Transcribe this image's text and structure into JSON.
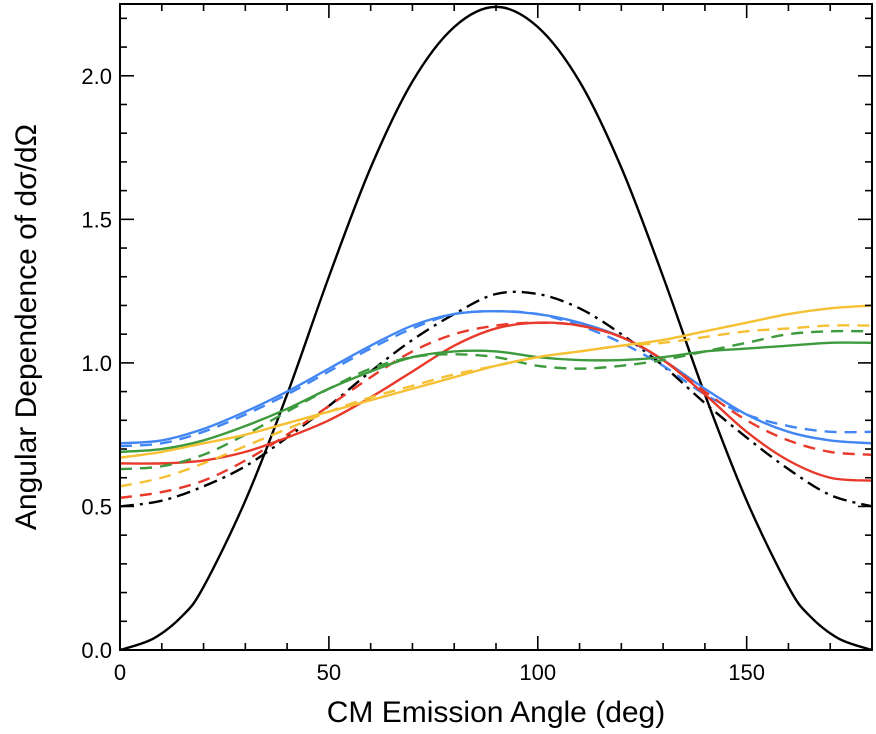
{
  "chart_data": {
    "type": "line",
    "title": "",
    "xlabel": "CM Emission Angle (deg)",
    "ylabel": "Angular Dependence of dσ/dΩ",
    "xlim": [
      0,
      180
    ],
    "ylim": [
      0,
      2.25
    ],
    "xticks": [
      0,
      50,
      100,
      150
    ],
    "yticks": [
      0.0,
      0.5,
      1.0,
      1.5,
      2.0
    ],
    "xtick_labels": [
      "0",
      "50",
      "100",
      "150"
    ],
    "ytick_labels": [
      "0.0",
      "0.5",
      "1.0",
      "1.5",
      "2.0"
    ],
    "grid": false,
    "legend": "none",
    "series": [
      {
        "name": "black-solid",
        "color": "#000000",
        "style": "solid",
        "x": [
          0,
          8,
          15,
          20,
          30,
          40,
          50,
          60,
          70,
          80,
          90,
          100,
          110,
          120,
          130,
          140,
          150,
          160,
          165,
          172,
          180
        ],
        "y": [
          0.0,
          0.04,
          0.12,
          0.22,
          0.52,
          0.89,
          1.3,
          1.68,
          1.98,
          2.17,
          2.24,
          2.17,
          1.98,
          1.68,
          1.3,
          0.89,
          0.52,
          0.22,
          0.12,
          0.04,
          0.0
        ]
      },
      {
        "name": "black-dashdot",
        "color": "#000000",
        "style": "dashdot",
        "x": [
          0,
          10,
          20,
          30,
          40,
          50,
          60,
          70,
          80,
          90,
          100,
          110,
          120,
          130,
          140,
          150,
          160,
          170,
          180
        ],
        "y": [
          0.5,
          0.52,
          0.57,
          0.64,
          0.74,
          0.85,
          0.97,
          1.08,
          1.17,
          1.24,
          1.24,
          1.19,
          1.1,
          0.99,
          0.86,
          0.74,
          0.63,
          0.54,
          0.5
        ]
      },
      {
        "name": "blue-solid",
        "color": "#4286f4",
        "style": "solid",
        "x": [
          0,
          10,
          20,
          30,
          40,
          50,
          60,
          70,
          80,
          90,
          100,
          110,
          120,
          130,
          140,
          150,
          160,
          170,
          180
        ],
        "y": [
          0.72,
          0.73,
          0.77,
          0.83,
          0.9,
          0.98,
          1.06,
          1.13,
          1.17,
          1.18,
          1.17,
          1.14,
          1.09,
          1.01,
          0.91,
          0.82,
          0.76,
          0.73,
          0.72
        ]
      },
      {
        "name": "blue-dashed",
        "color": "#4286f4",
        "style": "dashed",
        "x": [
          0,
          10,
          20,
          30,
          40,
          50,
          60,
          70,
          80,
          90,
          100,
          110,
          120,
          130,
          140,
          150,
          160,
          170,
          180
        ],
        "y": [
          0.71,
          0.72,
          0.76,
          0.82,
          0.89,
          0.97,
          1.05,
          1.12,
          1.17,
          1.18,
          1.17,
          1.13,
          1.07,
          0.99,
          0.89,
          0.82,
          0.78,
          0.76,
          0.76
        ]
      },
      {
        "name": "red-solid",
        "color": "#e8392a",
        "style": "solid",
        "x": [
          0,
          10,
          20,
          30,
          40,
          50,
          60,
          70,
          80,
          90,
          100,
          110,
          120,
          130,
          140,
          150,
          160,
          170,
          180
        ],
        "y": [
          0.65,
          0.65,
          0.66,
          0.69,
          0.74,
          0.8,
          0.88,
          0.97,
          1.06,
          1.12,
          1.14,
          1.13,
          1.09,
          1.01,
          0.89,
          0.76,
          0.66,
          0.6,
          0.59
        ]
      },
      {
        "name": "red-dashed",
        "color": "#e8392a",
        "style": "dashed",
        "x": [
          0,
          10,
          20,
          30,
          40,
          50,
          60,
          70,
          80,
          90,
          100,
          110,
          120,
          130,
          140,
          150,
          160,
          170,
          180
        ],
        "y": [
          0.53,
          0.55,
          0.59,
          0.66,
          0.75,
          0.85,
          0.95,
          1.04,
          1.1,
          1.13,
          1.14,
          1.13,
          1.09,
          1.01,
          0.9,
          0.8,
          0.73,
          0.69,
          0.68
        ]
      },
      {
        "name": "green-solid",
        "color": "#3d9a3d",
        "style": "solid",
        "x": [
          0,
          10,
          20,
          30,
          40,
          50,
          60,
          70,
          80,
          90,
          100,
          110,
          120,
          130,
          140,
          150,
          160,
          170,
          180
        ],
        "y": [
          0.69,
          0.7,
          0.73,
          0.78,
          0.84,
          0.91,
          0.97,
          1.02,
          1.04,
          1.04,
          1.02,
          1.01,
          1.01,
          1.02,
          1.04,
          1.05,
          1.06,
          1.07,
          1.07
        ]
      },
      {
        "name": "green-dashed",
        "color": "#3d9a3d",
        "style": "dashed",
        "x": [
          0,
          10,
          20,
          30,
          40,
          50,
          60,
          70,
          80,
          90,
          100,
          110,
          120,
          130,
          140,
          150,
          160,
          170,
          180
        ],
        "y": [
          0.63,
          0.64,
          0.68,
          0.75,
          0.83,
          0.91,
          0.98,
          1.02,
          1.03,
          1.02,
          0.99,
          0.98,
          0.99,
          1.01,
          1.04,
          1.07,
          1.1,
          1.11,
          1.11
        ]
      },
      {
        "name": "yellow-solid",
        "color": "#f5c033",
        "style": "solid",
        "x": [
          0,
          10,
          20,
          30,
          40,
          50,
          60,
          70,
          80,
          90,
          100,
          110,
          120,
          130,
          140,
          150,
          160,
          170,
          180
        ],
        "y": [
          0.67,
          0.69,
          0.72,
          0.75,
          0.79,
          0.83,
          0.87,
          0.91,
          0.95,
          0.99,
          1.02,
          1.04,
          1.06,
          1.08,
          1.11,
          1.14,
          1.17,
          1.19,
          1.2
        ]
      },
      {
        "name": "yellow-dashed",
        "color": "#f5c033",
        "style": "dashed",
        "x": [
          0,
          10,
          20,
          30,
          40,
          50,
          60,
          70,
          80,
          90,
          100,
          110,
          120,
          130,
          140,
          150,
          160,
          170,
          180
        ],
        "y": [
          0.57,
          0.6,
          0.65,
          0.71,
          0.77,
          0.83,
          0.88,
          0.92,
          0.96,
          0.99,
          1.02,
          1.04,
          1.06,
          1.07,
          1.09,
          1.11,
          1.12,
          1.13,
          1.13
        ]
      }
    ]
  }
}
